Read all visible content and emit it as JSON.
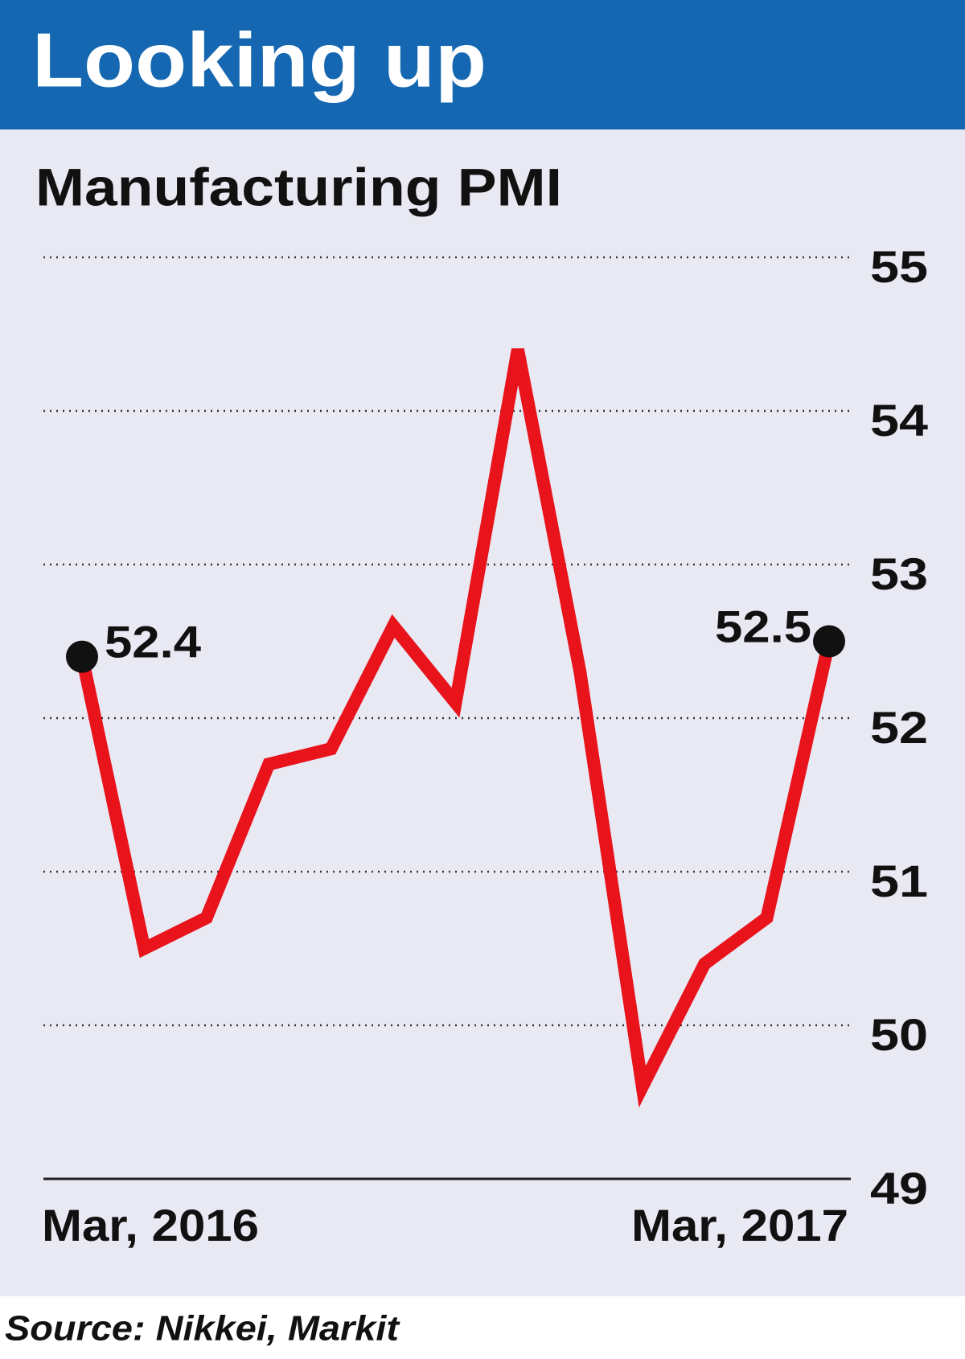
{
  "chart_data": {
    "type": "line",
    "title": "Looking up",
    "subtitle": "Manufacturing PMI",
    "source": "Source: Nikkei, Markit",
    "categories": [
      "Mar, 2016",
      null,
      null,
      null,
      null,
      null,
      null,
      null,
      null,
      null,
      null,
      null,
      "Mar, 2017"
    ],
    "series": [
      {
        "name": "Manufacturing PMI",
        "color": "#e8131b",
        "values": [
          52.4,
          50.5,
          50.7,
          51.7,
          51.8,
          52.6,
          52.1,
          54.4,
          52.3,
          49.6,
          50.4,
          50.7,
          52.5
        ]
      }
    ],
    "labeled_points": [
      0,
      12
    ],
    "ylim": [
      49,
      55
    ],
    "yticks": [
      49,
      50,
      51,
      52,
      53,
      54,
      55
    ],
    "grid": true
  }
}
